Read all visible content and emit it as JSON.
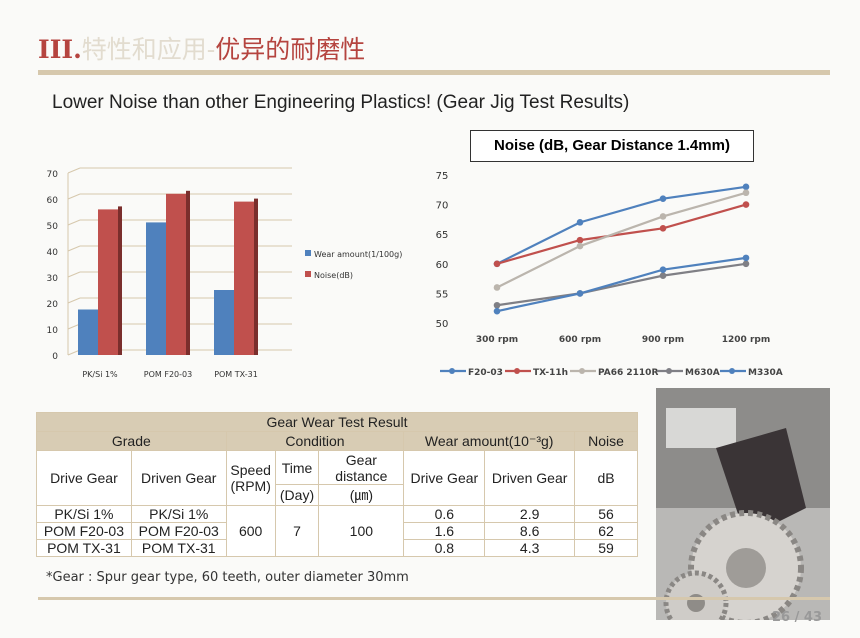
{
  "header": {
    "num": "III.",
    "faded": "特性和应用-",
    "main": "优异的耐磨性"
  },
  "subtitle": "Lower Noise than other Engineering Plastics! (Gear Jig Test Results)",
  "noise_box": "Noise (dB, Gear Distance 1.4mm)",
  "chart_data": [
    {
      "type": "bar",
      "categories": [
        "PK/Si 1%",
        "POM F20-03",
        "POM TX-31"
      ],
      "series": [
        {
          "name": "Wear amount(1/100g)",
          "values": [
            17.5,
            51,
            25
          ],
          "color": "#4f81bd"
        },
        {
          "name": "Noise(dB)",
          "values": [
            56,
            62,
            59
          ],
          "color": "#c0504d"
        }
      ],
      "ylim": [
        0,
        70
      ],
      "yticks": [
        0,
        10,
        20,
        30,
        40,
        50,
        60,
        70
      ],
      "grid": true,
      "legend": "right",
      "style": "3d"
    },
    {
      "type": "line",
      "categories": [
        "300 rpm",
        "600 rpm",
        "900 rpm",
        "1200 rpm"
      ],
      "series": [
        {
          "name": "F20-03",
          "values": [
            60,
            67,
            71,
            73
          ],
          "color": "#4f81bd"
        },
        {
          "name": "TX-11h",
          "values": [
            60,
            64,
            66,
            70
          ],
          "color": "#c0504d"
        },
        {
          "name": "PA66 2110R",
          "values": [
            56,
            63,
            68,
            72
          ],
          "color": "#bbb5ad"
        },
        {
          "name": "M630A",
          "values": [
            53,
            55,
            58,
            60
          ],
          "color": "#7f7f85"
        },
        {
          "name": "M330A",
          "values": [
            52,
            55,
            59,
            61
          ],
          "color": "#4f81bd"
        }
      ],
      "ylim": [
        50,
        75
      ],
      "yticks": [
        50,
        55,
        60,
        65,
        70,
        75
      ],
      "grid": false,
      "legend": "bottom"
    }
  ],
  "table": {
    "title": "Gear Wear Test Result",
    "groups": [
      "Grade",
      "Condition",
      "Wear amount(10⁻³g)",
      "Noise"
    ],
    "cols": {
      "drive": "Drive Gear",
      "driven": "Driven Gear",
      "speed": "Speed (RPM)",
      "time": "Time",
      "time_unit": "(Day)",
      "dist": "Gear distance",
      "dist_unit": "(㎛)",
      "wdrive": "Drive Gear",
      "wdriven": "Driven Gear",
      "db": "dB"
    },
    "speed": "600",
    "time": "7",
    "dist": "100",
    "rows": [
      {
        "drive": "PK/Si 1%",
        "driven": "PK/Si 1%",
        "wdrive": "0.6",
        "wdriven": "2.9",
        "db": "56"
      },
      {
        "drive": "POM F20-03",
        "driven": "POM F20-03",
        "wdrive": "1.6",
        "wdriven": "8.6",
        "db": "62"
      },
      {
        "drive": "POM TX-31",
        "driven": "POM TX-31",
        "wdrive": "0.8",
        "wdriven": "4.3",
        "db": "59"
      }
    ]
  },
  "note": "*Gear : Spur gear type, 60 teeth, outer diameter 30mm",
  "page": "26 / 43"
}
